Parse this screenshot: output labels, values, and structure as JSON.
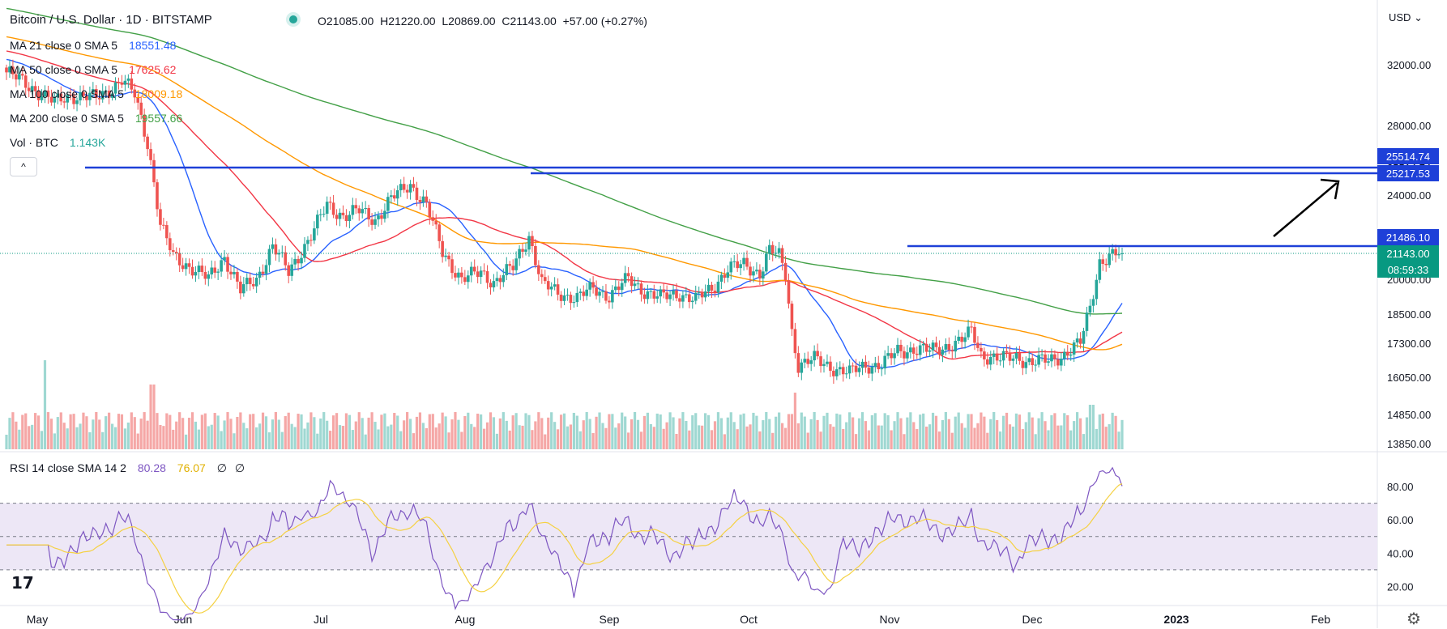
{
  "header": {
    "title": "Bitcoin / U.S. Dollar · 1D · BITSTAMP",
    "open": "O21085.00",
    "high": "H21220.00",
    "low": "L20869.00",
    "close": "C21143.00",
    "change": "+57.00 (+0.27%)",
    "currency": "USD"
  },
  "legend": [
    {
      "name": "MA 21 close 0 SMA 5",
      "value": "18551.48",
      "color": "#2962ff"
    },
    {
      "name": "MA 50 close 0 SMA 5",
      "value": "17625.62",
      "color": "#f23645"
    },
    {
      "name": "MA 100 close 0 SMA 5",
      "value": "18009.18",
      "color": "#ff9800"
    },
    {
      "name": "MA 200 close 0 SMA 5",
      "value": "19557.66",
      "color": "#43a047"
    },
    {
      "name": "Vol · BTC",
      "value": "1.143K",
      "color": "#26a69a"
    }
  ],
  "collapse_label": "^",
  "rsi": {
    "name": "RSI 14 close SMA 14 2",
    "value": "80.28",
    "sma_value": "76.07",
    "extra1": "∅",
    "extra2": "∅",
    "color": "#7e57c2",
    "sma_color": "#f5d142",
    "yticks": [
      "80.00",
      "60.00",
      "40.00",
      "20.00"
    ]
  },
  "price_tags": {
    "level1": "25514.74",
    "level2": "25217.53",
    "level3": "21486.10",
    "current": "21143.00",
    "countdown": "08:59:33"
  },
  "colors": {
    "up": "#26a69a",
    "down": "#ef5350",
    "hline": "#1e40d8",
    "rsi_band": "#ede7f6"
  },
  "logo_text": "17",
  "chart_data": {
    "type": "candlestick",
    "title": "Bitcoin / U.S. Dollar · 1D · BITSTAMP",
    "y_axis_ticks": [
      32000,
      28000,
      25514.74,
      25217.53,
      24000,
      21486.1,
      21143.0,
      20000,
      18500,
      17300,
      16050,
      14850,
      13850
    ],
    "x_axis_ticks": [
      "May",
      "Jun",
      "Jul",
      "Aug",
      "Sep",
      "Oct",
      "Nov",
      "Dec",
      "2023",
      "Feb"
    ],
    "horizontal_levels": [
      25514.74,
      25217.53,
      21486.1
    ],
    "last_close": 21143.0,
    "series": [
      {
        "name": "Price",
        "approx_points": [
          [
            "May",
            30000
          ],
          [
            "May-mid",
            29500
          ],
          [
            "Jun-early",
            31000
          ],
          [
            "Jun-mid",
            22000
          ],
          [
            "Jun-late",
            20000
          ],
          [
            "Jul",
            19500
          ],
          [
            "Jul-late",
            22500
          ],
          [
            "Aug-mid",
            24500
          ],
          [
            "Aug-late",
            21000
          ],
          [
            "Sep",
            20000
          ],
          [
            "Sep-mid",
            22500
          ],
          [
            "Sep-late",
            19000
          ],
          [
            "Oct",
            19400
          ],
          [
            "Oct-late",
            20500
          ],
          [
            "Nov-early",
            21300
          ],
          [
            "Nov-mid",
            16500
          ],
          [
            "Dec",
            17000
          ],
          [
            "Dec-mid",
            17800
          ],
          [
            "2023",
            16600
          ],
          [
            "Jan-mid",
            21100
          ]
        ]
      },
      {
        "name": "MA 21 close 0 SMA 5",
        "last": 18551.48
      },
      {
        "name": "MA 50 close 0 SMA 5",
        "last": 17625.62
      },
      {
        "name": "MA 100 close 0 SMA 5",
        "last": 18009.18
      },
      {
        "name": "MA 200 close 0 SMA 5",
        "last": 19557.66
      }
    ]
  }
}
